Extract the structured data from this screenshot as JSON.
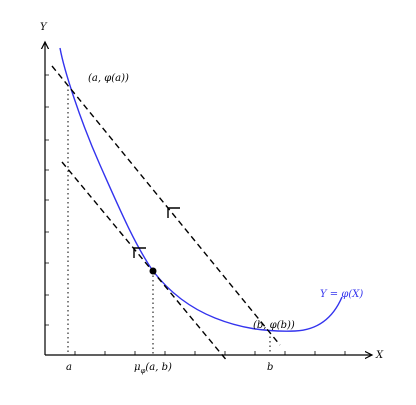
{
  "axes": {
    "y_label": "Y",
    "x_label": "X",
    "a": "a",
    "b": "b",
    "mu": {
      "base": "μ",
      "sub": "φ",
      "args": "(a, b)"
    }
  },
  "points": {
    "a_point": "(a, φ(a))",
    "b_point": "(b, φ(b))"
  },
  "curve_label": "Y = φ(X)"
}
